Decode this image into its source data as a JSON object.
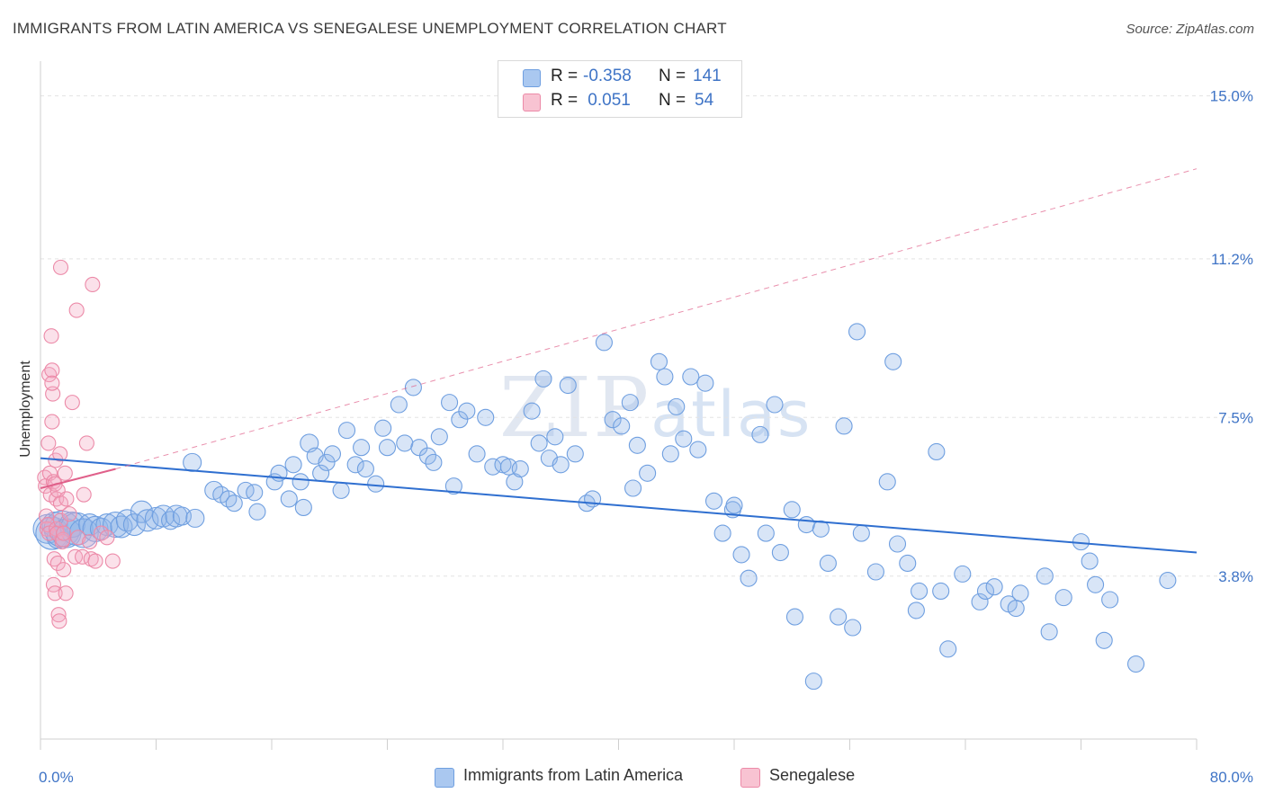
{
  "title": "IMMIGRANTS FROM LATIN AMERICA VS SENEGALESE UNEMPLOYMENT CORRELATION CHART",
  "source": "Source: ZipAtlas.com",
  "watermark": {
    "zip": "ZIP",
    "atlas": "atlas"
  },
  "legend": {
    "rows": [
      {
        "r_label": "R =",
        "r_value": "-0.358",
        "n_label": "N =",
        "n_value": "141",
        "color": "#aac8f0",
        "border": "#6f9fe0"
      },
      {
        "r_label": "R =",
        "r_value": " 0.051",
        "n_label": "N =",
        "n_value": "54",
        "color": "#f8c3d2",
        "border": "#ec8aa8"
      }
    ]
  },
  "chart_data": {
    "type": "scatter",
    "title": "IMMIGRANTS FROM LATIN AMERICA VS SENEGALESE UNEMPLOYMENT CORRELATION CHART",
    "xlabel": "",
    "ylabel": "Unemployment",
    "xlim": [
      0,
      80
    ],
    "ylim": [
      0,
      15.6
    ],
    "x_tick_labels": [
      "0.0%",
      "80.0%"
    ],
    "y_ticks": [
      3.8,
      7.5,
      11.2,
      15.0
    ],
    "y_tick_labels": [
      "3.8%",
      "7.5%",
      "11.2%",
      "15.0%"
    ],
    "grid": true,
    "series": [
      {
        "name": "Immigrants from Latin America",
        "color": "#6f9fe0",
        "fill": "rgba(143,180,232,0.35)",
        "trend": {
          "x0": 0,
          "y0": 6.55,
          "x1": 80,
          "y1": 4.35,
          "dashed": false,
          "color": "#2f6fd0"
        },
        "points": [
          [
            0.5,
            4.9,
            16
          ],
          [
            0.8,
            4.8,
            18
          ],
          [
            1.0,
            5.0,
            14
          ],
          [
            1.2,
            4.7,
            12
          ],
          [
            1.5,
            4.9,
            20
          ],
          [
            1.8,
            4.8,
            16
          ],
          [
            2.2,
            5.0,
            14
          ],
          [
            2.5,
            4.9,
            18
          ],
          [
            3.0,
            4.8,
            16
          ],
          [
            3.4,
            5.0,
            12
          ],
          [
            3.8,
            4.9,
            14
          ],
          [
            4.2,
            4.9,
            12
          ],
          [
            4.6,
            5.0,
            12
          ],
          [
            5.2,
            5.0,
            14
          ],
          [
            5.6,
            4.95,
            12
          ],
          [
            6.0,
            5.1,
            12
          ],
          [
            6.5,
            5.0,
            12
          ],
          [
            7.0,
            5.3,
            12
          ],
          [
            7.4,
            5.1,
            12
          ],
          [
            8.0,
            5.15,
            12
          ],
          [
            8.5,
            5.2,
            12
          ],
          [
            9.0,
            5.1,
            10
          ],
          [
            9.4,
            5.2,
            12
          ],
          [
            10.5,
            6.45,
            10
          ],
          [
            9.8,
            5.2,
            10
          ],
          [
            10.7,
            5.15,
            10
          ],
          [
            12.0,
            5.8,
            10
          ],
          [
            12.5,
            5.7,
            9
          ],
          [
            13.0,
            5.6,
            9
          ],
          [
            13.4,
            5.5,
            9
          ],
          [
            14.2,
            5.8,
            9
          ],
          [
            14.8,
            5.75,
            9
          ],
          [
            15.0,
            5.3,
            9
          ],
          [
            16.2,
            6.0,
            9
          ],
          [
            16.5,
            6.2,
            9
          ],
          [
            17.2,
            5.6,
            9
          ],
          [
            17.5,
            6.4,
            9
          ],
          [
            18.0,
            6.0,
            9
          ],
          [
            18.2,
            5.4,
            9
          ],
          [
            18.6,
            6.9,
            10
          ],
          [
            19.0,
            6.6,
            9
          ],
          [
            19.4,
            6.2,
            9
          ],
          [
            19.8,
            6.45,
            9
          ],
          [
            20.2,
            6.65,
            9
          ],
          [
            20.8,
            5.8,
            9
          ],
          [
            21.2,
            7.2,
            9
          ],
          [
            21.8,
            6.4,
            9
          ],
          [
            22.2,
            6.8,
            9
          ],
          [
            22.5,
            6.3,
            9
          ],
          [
            23.2,
            5.95,
            9
          ],
          [
            23.7,
            7.25,
            9
          ],
          [
            24.0,
            6.8,
            9
          ],
          [
            24.8,
            7.8,
            9
          ],
          [
            25.2,
            6.9,
            9
          ],
          [
            25.8,
            8.2,
            9
          ],
          [
            26.2,
            6.8,
            9
          ],
          [
            26.8,
            6.6,
            9
          ],
          [
            27.2,
            6.45,
            9
          ],
          [
            27.6,
            7.05,
            9
          ],
          [
            28.3,
            7.85,
            9
          ],
          [
            28.6,
            5.9,
            9
          ],
          [
            29.0,
            7.45,
            9
          ],
          [
            29.5,
            7.65,
            9
          ],
          [
            30.2,
            6.65,
            9
          ],
          [
            30.8,
            7.5,
            9
          ],
          [
            31.3,
            6.35,
            9
          ],
          [
            32.0,
            6.4,
            9
          ],
          [
            32.4,
            6.35,
            9
          ],
          [
            32.8,
            6.0,
            9
          ],
          [
            33.2,
            6.3,
            9
          ],
          [
            34.0,
            7.65,
            9
          ],
          [
            34.5,
            6.9,
            9
          ],
          [
            34.8,
            8.4,
            9
          ],
          [
            35.2,
            6.55,
            9
          ],
          [
            35.6,
            7.05,
            9
          ],
          [
            36.0,
            6.4,
            9
          ],
          [
            36.5,
            8.25,
            9
          ],
          [
            37.0,
            6.65,
            9
          ],
          [
            37.8,
            5.5,
            9
          ],
          [
            38.2,
            5.6,
            9
          ],
          [
            39.0,
            9.25,
            9
          ],
          [
            39.6,
            7.45,
            9
          ],
          [
            40.2,
            7.3,
            9
          ],
          [
            40.8,
            7.85,
            9
          ],
          [
            41.0,
            5.85,
            9
          ],
          [
            41.3,
            6.85,
            9
          ],
          [
            42.0,
            6.2,
            9
          ],
          [
            42.8,
            8.8,
            9
          ],
          [
            43.2,
            8.45,
            9
          ],
          [
            43.6,
            6.65,
            9
          ],
          [
            44.0,
            7.75,
            9
          ],
          [
            44.5,
            7.0,
            9
          ],
          [
            45.0,
            8.45,
            9
          ],
          [
            45.5,
            6.75,
            9
          ],
          [
            46.0,
            8.3,
            9
          ],
          [
            46.6,
            5.55,
            9
          ],
          [
            47.2,
            4.8,
            9
          ],
          [
            47.9,
            5.35,
            9
          ],
          [
            48.0,
            5.45,
            9
          ],
          [
            48.5,
            4.3,
            9
          ],
          [
            49.0,
            3.75,
            9
          ],
          [
            49.8,
            7.1,
            9
          ],
          [
            50.2,
            4.8,
            9
          ],
          [
            50.8,
            7.8,
            9
          ],
          [
            51.2,
            4.35,
            9
          ],
          [
            52.0,
            5.35,
            9
          ],
          [
            52.2,
            2.85,
            9
          ],
          [
            53.0,
            5.0,
            9
          ],
          [
            53.5,
            1.35,
            9
          ],
          [
            54.0,
            4.9,
            9
          ],
          [
            54.5,
            4.1,
            9
          ],
          [
            55.2,
            2.85,
            9
          ],
          [
            55.6,
            7.3,
            9
          ],
          [
            56.2,
            2.6,
            9
          ],
          [
            56.5,
            9.5,
            9
          ],
          [
            56.8,
            4.8,
            9
          ],
          [
            57.8,
            3.9,
            9
          ],
          [
            58.6,
            6.0,
            9
          ],
          [
            59.0,
            8.8,
            9
          ],
          [
            59.3,
            4.55,
            9
          ],
          [
            60.0,
            4.1,
            9
          ],
          [
            60.6,
            3.0,
            9
          ],
          [
            60.8,
            3.45,
            9
          ],
          [
            62.0,
            6.7,
            9
          ],
          [
            62.3,
            3.45,
            9
          ],
          [
            62.8,
            2.1,
            9
          ],
          [
            63.8,
            3.85,
            9
          ],
          [
            65.0,
            3.2,
            9
          ],
          [
            65.4,
            3.45,
            9
          ],
          [
            66.0,
            3.55,
            9
          ],
          [
            67.0,
            3.15,
            9
          ],
          [
            67.5,
            3.05,
            9
          ],
          [
            67.8,
            3.4,
            9
          ],
          [
            69.5,
            3.8,
            9
          ],
          [
            69.8,
            2.5,
            9
          ],
          [
            70.8,
            3.3,
            9
          ],
          [
            72.0,
            4.6,
            9
          ],
          [
            72.6,
            4.15,
            9
          ],
          [
            73.0,
            3.6,
            9
          ],
          [
            73.6,
            2.3,
            9
          ],
          [
            74.0,
            3.25,
            9
          ],
          [
            75.8,
            1.75,
            9
          ],
          [
            78.0,
            3.7,
            9
          ]
        ]
      },
      {
        "name": "Senegalese",
        "color": "#ec8aa8",
        "fill": "rgba(244,170,195,0.35)",
        "trend": {
          "x0": 0,
          "y0": 5.85,
          "x1": 5.2,
          "y1": 6.3,
          "dashed": false,
          "color": "#e0608a",
          "extension": {
            "x0": 5.2,
            "y0": 6.3,
            "x1": 80,
            "y1": 13.3,
            "dashed": true
          }
        },
        "points": [
          [
            0.3,
            6.1,
            8
          ],
          [
            0.35,
            5.9,
            8
          ],
          [
            0.4,
            5.2,
            8
          ],
          [
            0.45,
            4.9,
            8
          ],
          [
            0.5,
            5.0,
            8
          ],
          [
            0.55,
            6.9,
            8
          ],
          [
            0.6,
            8.5,
            8
          ],
          [
            0.6,
            4.8,
            8
          ],
          [
            0.65,
            6.2,
            8
          ],
          [
            0.7,
            5.7,
            8
          ],
          [
            0.75,
            9.4,
            8
          ],
          [
            0.8,
            7.4,
            8
          ],
          [
            0.8,
            8.6,
            8
          ],
          [
            0.85,
            8.05,
            8
          ],
          [
            0.9,
            6.0,
            8
          ],
          [
            0.9,
            3.6,
            8
          ],
          [
            0.95,
            4.2,
            8
          ],
          [
            1.0,
            5.95,
            8
          ],
          [
            1.0,
            3.4,
            8
          ],
          [
            1.05,
            6.5,
            8
          ],
          [
            1.1,
            5.6,
            8
          ],
          [
            1.1,
            4.9,
            8
          ],
          [
            1.15,
            4.8,
            8
          ],
          [
            1.2,
            5.8,
            8
          ],
          [
            1.2,
            4.1,
            8
          ],
          [
            1.25,
            2.9,
            8
          ],
          [
            1.3,
            2.75,
            8
          ],
          [
            1.35,
            6.65,
            8
          ],
          [
            1.4,
            5.5,
            8
          ],
          [
            1.4,
            5.1,
            8
          ],
          [
            1.5,
            4.6,
            8
          ],
          [
            1.55,
            4.65,
            8
          ],
          [
            1.6,
            3.95,
            8
          ],
          [
            1.6,
            4.8,
            8
          ],
          [
            1.7,
            6.2,
            8
          ],
          [
            1.75,
            3.4,
            8
          ],
          [
            1.8,
            5.6,
            8
          ],
          [
            1.4,
            11.0,
            8
          ],
          [
            2.0,
            5.25,
            8
          ],
          [
            2.2,
            7.85,
            8
          ],
          [
            2.4,
            4.25,
            8
          ],
          [
            2.5,
            10.0,
            8
          ],
          [
            2.6,
            4.7,
            8
          ],
          [
            2.9,
            4.25,
            8
          ],
          [
            3.0,
            5.7,
            8
          ],
          [
            3.2,
            6.9,
            8
          ],
          [
            3.4,
            4.6,
            8
          ],
          [
            3.5,
            4.2,
            8
          ],
          [
            3.6,
            10.6,
            8
          ],
          [
            3.8,
            4.15,
            8
          ],
          [
            4.2,
            4.8,
            8
          ],
          [
            4.6,
            4.7,
            8
          ],
          [
            5.0,
            4.15,
            8
          ],
          [
            0.8,
            8.3,
            8
          ]
        ]
      }
    ]
  },
  "bottom_legend": [
    {
      "label": "Immigrants from Latin America",
      "color": "#aac8f0",
      "border": "#6f9fe0"
    },
    {
      "label": "Senegalese",
      "color": "#f8c3d2",
      "border": "#ec8aa8"
    }
  ]
}
